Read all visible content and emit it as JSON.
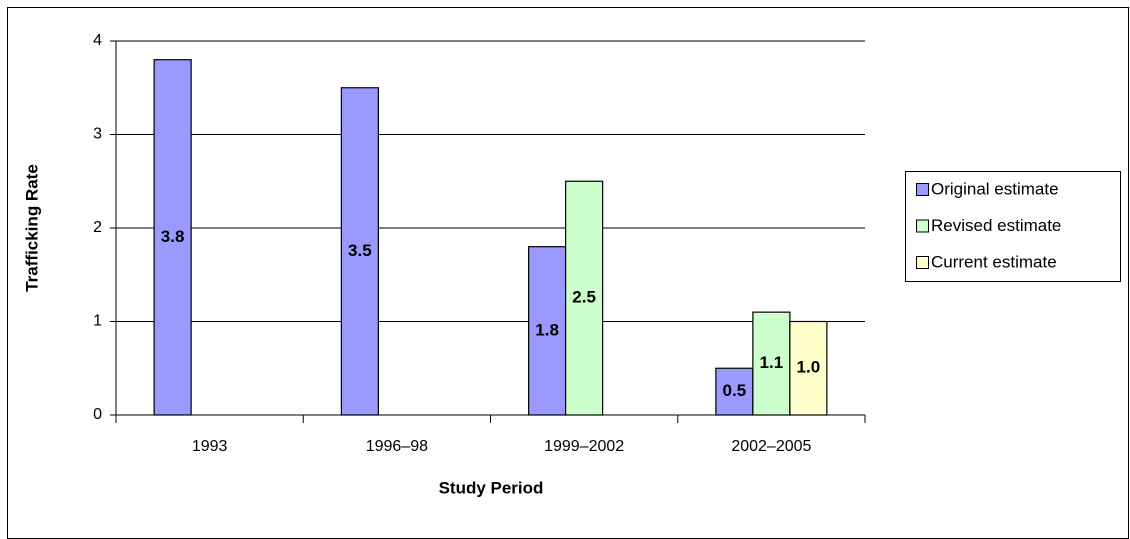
{
  "chart_data": {
    "type": "bar",
    "x_label": "Study Period",
    "y_label": "Trafficking Rate",
    "categories": [
      "1993",
      "1996–98",
      "1999–2002",
      "2002–2005"
    ],
    "series": [
      {
        "name": "Original estimate",
        "color": "#9999ff",
        "values": [
          3.8,
          3.5,
          1.8,
          0.5
        ]
      },
      {
        "name": "Revised estimate",
        "color": "#ccffcc",
        "values": [
          null,
          null,
          2.5,
          1.1
        ]
      },
      {
        "name": "Current estimate",
        "color": "#ffffcc",
        "values": [
          null,
          null,
          null,
          1.0
        ],
        "value_labels": [
          null,
          null,
          null,
          "1.0"
        ]
      }
    ],
    "ylim": [
      0,
      4
    ],
    "yticks": [
      0,
      1,
      2,
      3,
      4
    ],
    "grid": true,
    "legend": "right"
  }
}
